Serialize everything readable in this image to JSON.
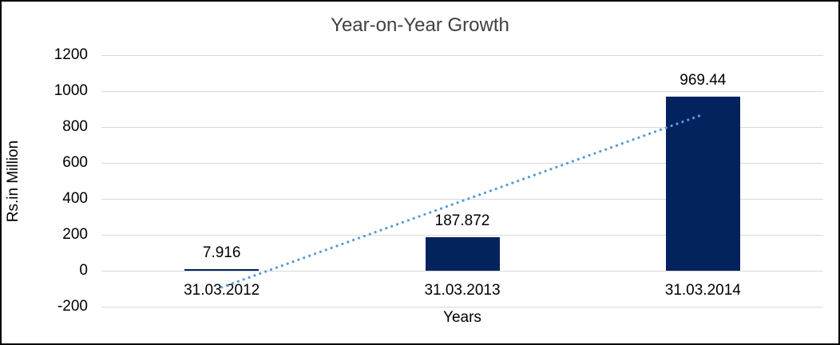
{
  "chart_data": {
    "type": "bar",
    "title": "Year-on-Year Growth",
    "categories": [
      "31.03.2012",
      "31.03.2013",
      "31.03.2014"
    ],
    "values": [
      7.916,
      187.872,
      969.44
    ],
    "data_labels": [
      "7.916",
      "187.872",
      "969.44"
    ],
    "xlabel": "Years",
    "ylabel": "Rs.in Million",
    "ylim": [
      -200,
      1200
    ],
    "yticks": [
      1200,
      1000,
      800,
      600,
      400,
      200,
      0,
      -200
    ],
    "grid": true,
    "legend": false,
    "bar_color": "#03235f",
    "gridline_color": "#d9d9d9",
    "trendline": {
      "type": "linear",
      "style": "dotted",
      "color": "#5b9bd5",
      "start_value": -92.3,
      "end_value": 869.2
    }
  }
}
